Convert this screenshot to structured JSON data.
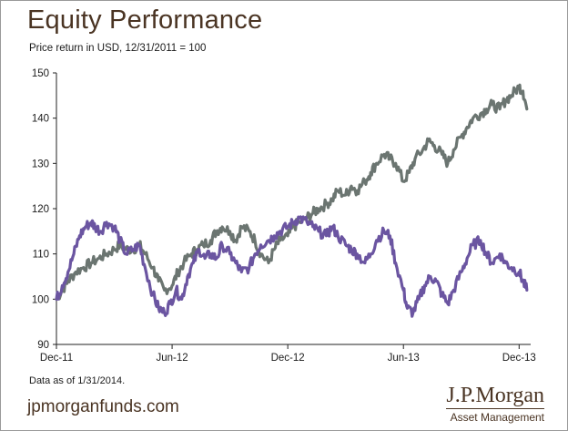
{
  "title": "Equity Performance",
  "subtitle": "Price return in USD, 12/31/2011 = 100",
  "footnote": "Data as of 1/31/2014.",
  "website": "jpmorganfunds.com",
  "brand": {
    "name": "J.P.Morgan",
    "subtitle": "Asset Management"
  },
  "colors": {
    "series_gray": "#6b7571",
    "series_purple": "#6b55a1",
    "axis": "#222222",
    "text_brown": "#4a3423"
  },
  "chart_data": {
    "type": "line",
    "title": "",
    "xlabel": "",
    "ylabel": "",
    "ylim": [
      90,
      150
    ],
    "y_ticks": [
      90,
      100,
      110,
      120,
      130,
      140,
      150
    ],
    "x_ticks": [
      {
        "label": "Dec-11",
        "t": 0
      },
      {
        "label": "Jun-12",
        "t": 6
      },
      {
        "label": "Dec-12",
        "t": 12
      },
      {
        "label": "Jun-13",
        "t": 18
      },
      {
        "label": "Dec-13",
        "t": 24
      }
    ],
    "x_unit": "months since Dec-11",
    "xlim": [
      0,
      24.6
    ],
    "grid": false,
    "legend": "none",
    "series": [
      {
        "color": "#6b7571",
        "points": [
          [
            0,
            100
          ],
          [
            0.3,
            102
          ],
          [
            0.6,
            104
          ],
          [
            1,
            106
          ],
          [
            1.4,
            107
          ],
          [
            1.8,
            108
          ],
          [
            2.2,
            109
          ],
          [
            2.6,
            110
          ],
          [
            3,
            111
          ],
          [
            3.3,
            112
          ],
          [
            3.6,
            111
          ],
          [
            4,
            111
          ],
          [
            4.3,
            112
          ],
          [
            4.6,
            110
          ],
          [
            5,
            107
          ],
          [
            5.3,
            104
          ],
          [
            5.6,
            102
          ],
          [
            6,
            103
          ],
          [
            6.3,
            106
          ],
          [
            6.6,
            108
          ],
          [
            7,
            110
          ],
          [
            7.3,
            111
          ],
          [
            7.6,
            112
          ],
          [
            8,
            113
          ],
          [
            8.3,
            115
          ],
          [
            8.6,
            116
          ],
          [
            9,
            115
          ],
          [
            9.3,
            113
          ],
          [
            9.6,
            116
          ],
          [
            10,
            115
          ],
          [
            10.3,
            113
          ],
          [
            10.6,
            110
          ],
          [
            11,
            108
          ],
          [
            11.3,
            111
          ],
          [
            11.6,
            113
          ],
          [
            12,
            114
          ],
          [
            12.3,
            116
          ],
          [
            12.6,
            117
          ],
          [
            13,
            118
          ],
          [
            13.3,
            119
          ],
          [
            13.6,
            120
          ],
          [
            14,
            121
          ],
          [
            14.3,
            122
          ],
          [
            14.6,
            124
          ],
          [
            15,
            123
          ],
          [
            15.3,
            125
          ],
          [
            15.6,
            124
          ],
          [
            16,
            126
          ],
          [
            16.3,
            128
          ],
          [
            16.6,
            130
          ],
          [
            17,
            132
          ],
          [
            17.3,
            131
          ],
          [
            17.6,
            130
          ],
          [
            18,
            126
          ],
          [
            18.3,
            128
          ],
          [
            18.6,
            131
          ],
          [
            19,
            133
          ],
          [
            19.3,
            135
          ],
          [
            19.6,
            134
          ],
          [
            20,
            132
          ],
          [
            20.3,
            130
          ],
          [
            20.6,
            133
          ],
          [
            21,
            136
          ],
          [
            21.3,
            138
          ],
          [
            21.6,
            140
          ],
          [
            22,
            141
          ],
          [
            22.3,
            142
          ],
          [
            22.6,
            143
          ],
          [
            23,
            142
          ],
          [
            23.3,
            144
          ],
          [
            23.6,
            145
          ],
          [
            24,
            147
          ],
          [
            24.2,
            146
          ],
          [
            24.4,
            142
          ]
        ]
      },
      {
        "color": "#6b55a1",
        "points": [
          [
            0,
            100
          ],
          [
            0.3,
            103
          ],
          [
            0.6,
            106
          ],
          [
            0.9,
            110
          ],
          [
            1.2,
            114
          ],
          [
            1.5,
            116
          ],
          [
            1.8,
            117
          ],
          [
            2,
            116
          ],
          [
            2.3,
            115
          ],
          [
            2.6,
            117
          ],
          [
            3,
            116
          ],
          [
            3.3,
            113
          ],
          [
            3.6,
            110
          ],
          [
            4,
            111
          ],
          [
            4.3,
            112
          ],
          [
            4.6,
            107
          ],
          [
            5,
            101
          ],
          [
            5.3,
            98
          ],
          [
            5.6,
            97
          ],
          [
            5.9,
            99
          ],
          [
            6.2,
            102
          ],
          [
            6.5,
            100
          ],
          [
            6.8,
            105
          ],
          [
            7.1,
            108
          ],
          [
            7.4,
            111
          ],
          [
            7.7,
            109
          ],
          [
            8,
            110
          ],
          [
            8.3,
            109
          ],
          [
            8.6,
            112
          ],
          [
            9,
            110
          ],
          [
            9.3,
            108
          ],
          [
            9.6,
            106
          ],
          [
            10,
            107
          ],
          [
            10.3,
            110
          ],
          [
            10.6,
            112
          ],
          [
            11,
            113
          ],
          [
            11.3,
            114
          ],
          [
            11.6,
            115
          ],
          [
            12,
            116
          ],
          [
            12.3,
            117
          ],
          [
            12.6,
            118
          ],
          [
            13,
            117
          ],
          [
            13.3,
            116
          ],
          [
            13.6,
            115
          ],
          [
            14,
            114
          ],
          [
            14.3,
            116
          ],
          [
            14.6,
            114
          ],
          [
            15,
            112
          ],
          [
            15.3,
            111
          ],
          [
            15.6,
            110
          ],
          [
            16,
            108
          ],
          [
            16.3,
            110
          ],
          [
            16.6,
            113
          ],
          [
            17,
            115
          ],
          [
            17.3,
            114
          ],
          [
            17.6,
            108
          ],
          [
            18,
            102
          ],
          [
            18.2,
            98
          ],
          [
            18.5,
            97
          ],
          [
            18.8,
            100
          ],
          [
            19.1,
            103
          ],
          [
            19.4,
            105
          ],
          [
            19.7,
            104
          ],
          [
            20,
            101
          ],
          [
            20.3,
            99
          ],
          [
            20.6,
            102
          ],
          [
            21,
            106
          ],
          [
            21.3,
            109
          ],
          [
            21.6,
            112
          ],
          [
            22,
            113
          ],
          [
            22.3,
            110
          ],
          [
            22.6,
            108
          ],
          [
            23,
            110
          ],
          [
            23.3,
            108
          ],
          [
            23.6,
            107
          ],
          [
            24,
            106
          ],
          [
            24.2,
            104
          ],
          [
            24.4,
            102
          ]
        ]
      }
    ]
  }
}
